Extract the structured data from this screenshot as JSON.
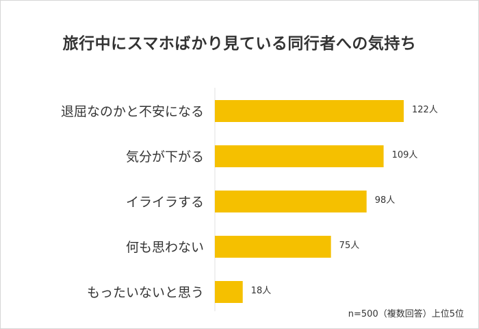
{
  "chart_data": {
    "type": "bar",
    "orientation": "horizontal",
    "title": "旅行中にスマホばかり見ている同行者への気持ち",
    "categories": [
      "退屈なのかと不安になる",
      "気分が下がる",
      "イライラする",
      "何も思わない",
      "もったいないと思う"
    ],
    "values": [
      122,
      109,
      98,
      75,
      18
    ],
    "value_labels": [
      "122人",
      "109人",
      "98人",
      "75人",
      "18人"
    ],
    "colors": {
      "bar": "#f5c000"
    },
    "grid": false,
    "note": "n=500（複数回答）上位5位"
  }
}
